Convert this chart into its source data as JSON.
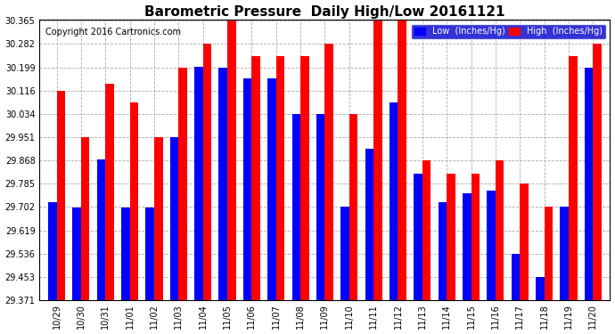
{
  "title": "Barometric Pressure  Daily High/Low 20161121",
  "copyright": "Copyright 2016 Cartronics.com",
  "labels": [
    "10/29",
    "10/30",
    "10/31",
    "11/01",
    "11/02",
    "11/03",
    "11/04",
    "11/05",
    "11/06",
    "11/07",
    "11/08",
    "11/09",
    "11/10",
    "11/11",
    "11/12",
    "11/13",
    "11/14",
    "11/15",
    "11/16",
    "11/17",
    "11/18",
    "11/19",
    "11/20"
  ],
  "low_values": [
    29.72,
    29.7,
    29.87,
    29.7,
    29.7,
    29.95,
    30.2,
    30.199,
    30.16,
    30.16,
    30.034,
    30.034,
    29.702,
    29.91,
    30.075,
    29.82,
    29.72,
    29.75,
    29.76,
    29.536,
    29.453,
    29.702,
    30.199
  ],
  "high_values": [
    30.116,
    29.951,
    30.14,
    30.075,
    29.951,
    30.199,
    30.282,
    30.365,
    30.24,
    30.24,
    30.24,
    30.282,
    30.034,
    30.365,
    30.365,
    29.868,
    29.82,
    29.82,
    29.868,
    29.785,
    29.702,
    30.24,
    30.282
  ],
  "ymin": 29.371,
  "ymax": 30.365,
  "yticks": [
    29.371,
    29.453,
    29.536,
    29.619,
    29.702,
    29.785,
    29.868,
    29.951,
    30.034,
    30.116,
    30.199,
    30.282,
    30.365
  ],
  "bar_width": 0.35,
  "low_color": "#0000ff",
  "high_color": "#ff0000",
  "bg_color": "#ffffff",
  "grid_color": "#aaaaaa",
  "title_fontsize": 11,
  "copyright_fontsize": 7,
  "legend_low_label": "Low  (Inches/Hg)",
  "legend_high_label": "High  (Inches/Hg)"
}
